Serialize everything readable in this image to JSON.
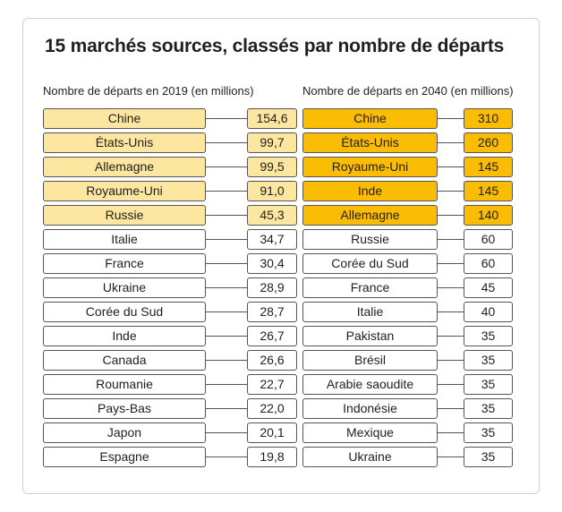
{
  "title": "15 marchés sources, classés par nombre de départs",
  "colors": {
    "highlight_2019": "#fde6a0",
    "highlight_2040": "#fbbc04",
    "border": "#555555"
  },
  "chart_data": [
    {
      "type": "table",
      "title": "Nombre de départs en 2019 (en millions)",
      "highlighted_top": 5,
      "categories": [
        "Chine",
        "États-Unis",
        "Allemagne",
        "Royaume-Uni",
        "Russie",
        "Italie",
        "France",
        "Ukraine",
        "Corée du Sud",
        "Inde",
        "Canada",
        "Roumanie",
        "Pays-Bas",
        "Japon",
        "Espagne"
      ],
      "values": [
        "154,6",
        "99,7",
        "99,5",
        "91,0",
        "45,3",
        "34,7",
        "30,4",
        "28,9",
        "28,7",
        "26,7",
        "26,6",
        "22,7",
        "22,0",
        "20,1",
        "19,8"
      ]
    },
    {
      "type": "table",
      "title": "Nombre de départs en 2040 (en millions)",
      "highlighted_top": 5,
      "categories": [
        "Chine",
        "États-Unis",
        "Royaume-Uni",
        "Inde",
        "Allemagne",
        "Russie",
        "Corée du Sud",
        "France",
        "Italie",
        "Pakistan",
        "Brésil",
        "Arabie saoudite",
        "Indonésie",
        "Mexique",
        "Ukraine"
      ],
      "values": [
        "310",
        "260",
        "145",
        "145",
        "140",
        "60",
        "60",
        "45",
        "40",
        "35",
        "35",
        "35",
        "35",
        "35",
        "35"
      ]
    }
  ]
}
